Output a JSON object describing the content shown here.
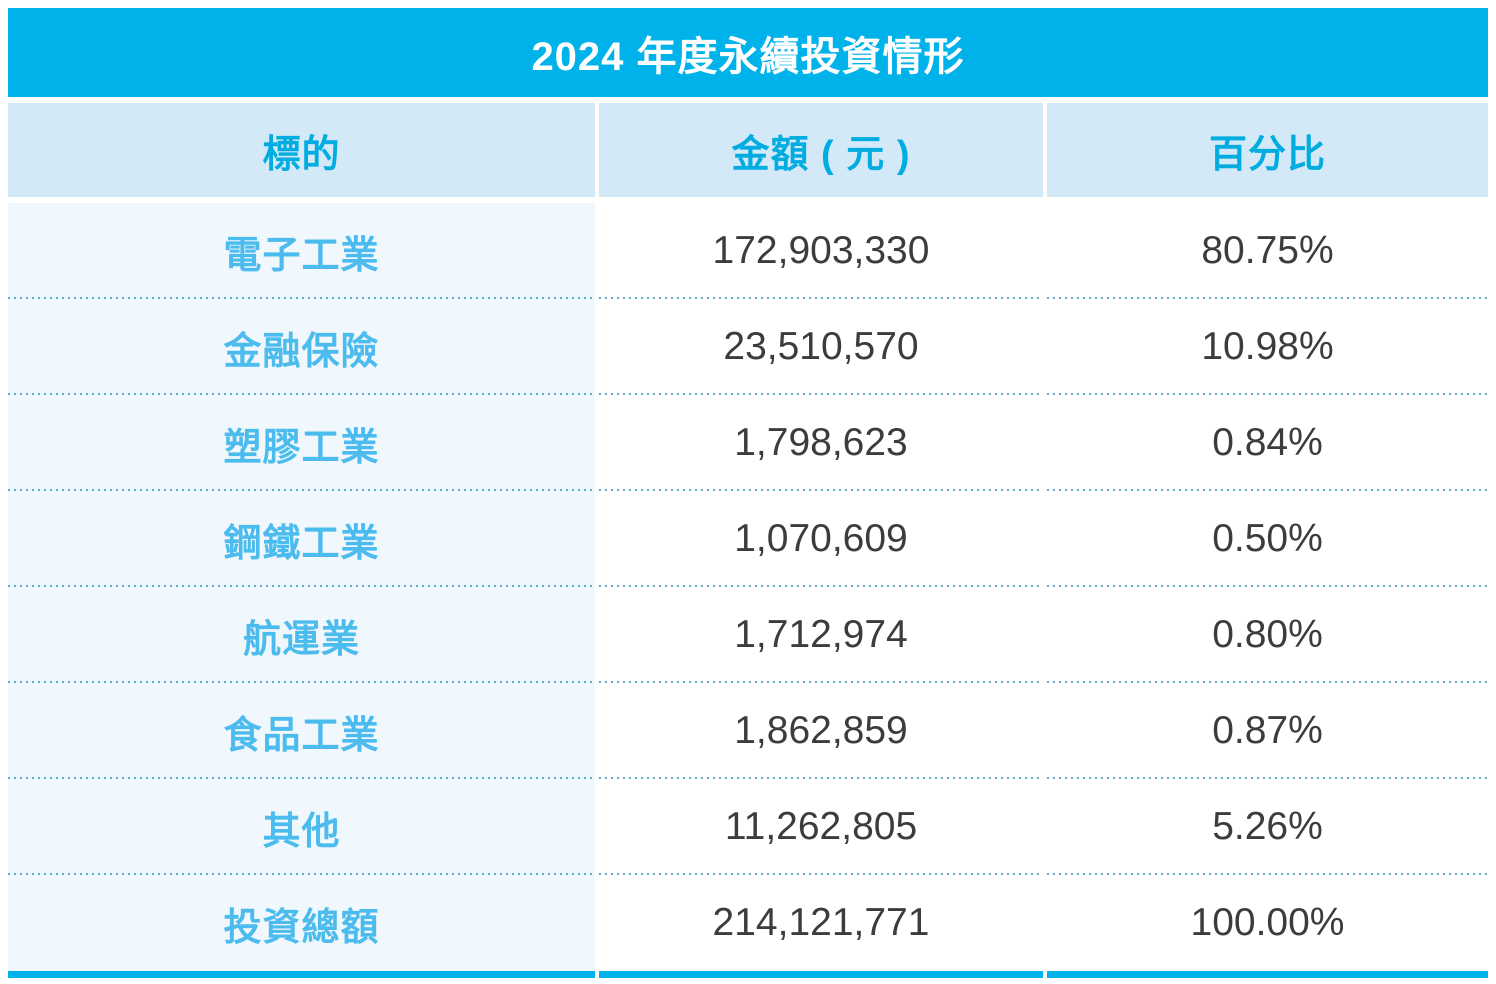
{
  "title": "2024 年度永續投資情形",
  "table": {
    "headers": {
      "target": "標的",
      "amount": "金額 ( 元 )",
      "percent": "百分比"
    },
    "rows": [
      {
        "label": "電子工業",
        "amount": "172,903,330",
        "percent": "80.75%"
      },
      {
        "label": "金融保險",
        "amount": "23,510,570",
        "percent": "10.98%"
      },
      {
        "label": "塑膠工業",
        "amount": "1,798,623",
        "percent": "0.84%"
      },
      {
        "label": "鋼鐵工業",
        "amount": "1,070,609",
        "percent": "0.50%"
      },
      {
        "label": "航運業",
        "amount": "1,712,974",
        "percent": "0.80%"
      },
      {
        "label": "食品工業",
        "amount": "1,862,859",
        "percent": "0.87%"
      },
      {
        "label": "其他",
        "amount": "11,262,805",
        "percent": "5.26%"
      },
      {
        "label": "投資總額",
        "amount": "214,121,771",
        "percent": "100.00%"
      }
    ]
  },
  "colors": {
    "accent_cyan": "#00b2ea",
    "header_bg": "#d3e9f8",
    "header_text": "#00ace0",
    "row_label_text": "#4cbcee",
    "row_label_bg": "#f0f7fd",
    "value_text": "#3c3c3c",
    "dotted_divider": "#57afcc",
    "title_text": "#ffffff"
  },
  "chart_data": {
    "type": "table",
    "title": "2024 年度永續投資情形",
    "columns": [
      "標的",
      "金額 ( 元 )",
      "百分比"
    ],
    "categories": [
      "電子工業",
      "金融保險",
      "塑膠工業",
      "鋼鐵工業",
      "航運業",
      "食品工業",
      "其他",
      "投資總額"
    ],
    "amounts": [
      172903330,
      23510570,
      1798623,
      1070609,
      1712974,
      1862859,
      11262805,
      214121771
    ],
    "percentages": [
      80.75,
      10.98,
      0.84,
      0.5,
      0.8,
      0.87,
      5.26,
      100.0
    ]
  }
}
